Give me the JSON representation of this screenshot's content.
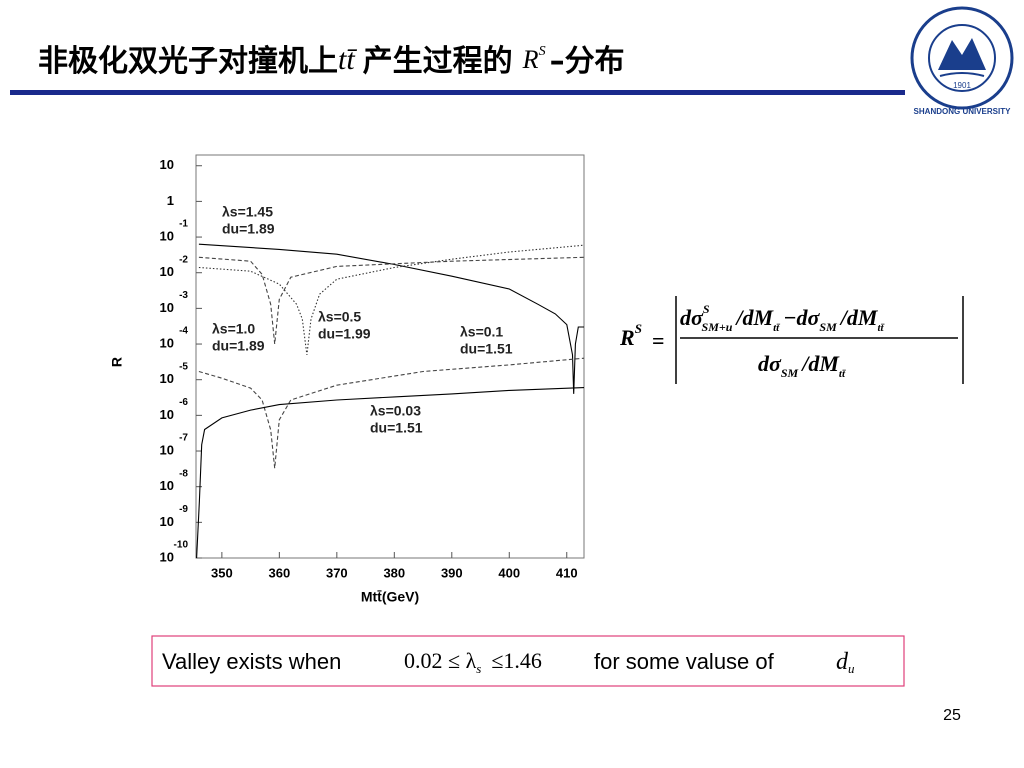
{
  "slide": {
    "title": "非极化双光子对撞机上",
    "title_tt": "tt̄",
    "title_mid": "产生过程的",
    "title_r": "R",
    "title_r_sup": "S",
    "title_end": "–分布",
    "formula": {
      "lhs": "R",
      "lhs_sup": "S",
      "eq": "=",
      "num1": "dσ",
      "num1_sup": "S",
      "num1_sub": "SM+u",
      "num2": "/dM",
      "num2_sub": "tt̄",
      "minus": "−dσ",
      "num3_sub": "SM",
      "num4": "/dM",
      "num4_sub": "tt̄",
      "den1": "dσ",
      "den1_sub": "SM",
      "den2": "/dM",
      "den2_sub": "tt̄"
    },
    "note": {
      "text1": "Valley exists when",
      "range": "0.02 ≤ λ",
      "range_sub": "s",
      "range_end": "≤1.46",
      "text2": "for some valuse of",
      "du": "d",
      "du_sub": "u"
    },
    "logo": {
      "name": "SHANDONG UNIVERSITY",
      "year": "1901"
    },
    "page_number": "25"
  },
  "chart_data": {
    "type": "line",
    "ylabel": "R",
    "xlabel": "Mtt̄(GeV)",
    "ylog": true,
    "xlim": [
      345.5,
      413
    ],
    "xticks": [
      350,
      360,
      370,
      380,
      390,
      400,
      410
    ],
    "ylim": [
      1e-10,
      20
    ],
    "yticks": [
      {
        "value": 10,
        "label": "10"
      },
      {
        "value": 1,
        "label": "1"
      },
      {
        "value": 0.1,
        "label": "10",
        "exponent": "-1"
      },
      {
        "value": 0.01,
        "label": "10",
        "exponent": "-2"
      },
      {
        "value": 0.001,
        "label": "10",
        "exponent": "-3"
      },
      {
        "value": 0.0001,
        "label": "10",
        "exponent": "-4"
      },
      {
        "value": 1e-05,
        "label": "10",
        "exponent": "-5"
      },
      {
        "value": 1e-06,
        "label": "10",
        "exponent": "-6"
      },
      {
        "value": 1e-07,
        "label": "10",
        "exponent": "-7"
      },
      {
        "value": 1e-08,
        "label": "10",
        "exponent": "-8"
      },
      {
        "value": 1e-09,
        "label": "10",
        "exponent": "-9"
      },
      {
        "value": 1e-10,
        "label": "10",
        "exponent": "-10"
      }
    ],
    "series": [
      {
        "name": "λs=1.45",
        "du": "du=1.89",
        "color": "#000000",
        "dash": "solid",
        "x": [
          346,
          360,
          370,
          380,
          390,
          400,
          405,
          408,
          410,
          411,
          411.2,
          411.5,
          412,
          413
        ],
        "values": [
          0.063,
          0.045,
          0.033,
          0.017,
          0.008,
          0.0035,
          0.0013,
          0.0007,
          0.00035,
          5e-05,
          4e-06,
          0.0001,
          0.0003,
          0.0003
        ]
      },
      {
        "name": "λs=0.5",
        "du": "du=1.99",
        "color": "#333333",
        "dash": "dotted",
        "x": [
          346,
          355,
          360,
          363,
          364,
          364.8,
          365.5,
          367,
          370,
          380,
          390,
          400,
          413
        ],
        "values": [
          0.014,
          0.011,
          0.0048,
          0.0013,
          0.0005,
          5e-05,
          0.0005,
          0.0025,
          0.0066,
          0.014,
          0.024,
          0.038,
          0.059
        ]
      },
      {
        "name": "λs=1.0",
        "du": "du=1.89",
        "color": "#444444",
        "dash": "dashed",
        "x": [
          346,
          355,
          357,
          358.5,
          359.2,
          360,
          362,
          370,
          390,
          413
        ],
        "values": [
          0.027,
          0.021,
          0.009,
          0.0013,
          0.0001,
          0.0018,
          0.0075,
          0.015,
          0.021,
          0.027
        ]
      },
      {
        "name": "λs=0.1",
        "du": "du=1.51",
        "color": "#444444",
        "dash": "dashed",
        "x": [
          346,
          350,
          355,
          357,
          358.5,
          359.2,
          360,
          362,
          370,
          385,
          400,
          413
        ],
        "values": [
          1.7e-05,
          1.1e-05,
          5.8e-06,
          2.7e-06,
          3.9e-07,
          3.3e-08,
          7.5e-07,
          2.7e-06,
          7e-06,
          1.7e-05,
          2.6e-05,
          4e-05
        ]
      },
      {
        "name": "λs=0.03",
        "du": "du=1.51",
        "color": "#000000",
        "dash": "solid",
        "x": [
          345.6,
          346.1,
          346.5,
          347,
          350,
          355,
          360,
          370,
          380,
          390,
          400,
          413
        ],
        "values": [
          1e-10,
          4e-09,
          1.5e-07,
          4e-07,
          8.5e-07,
          1.4e-06,
          2e-06,
          2.7e-06,
          3.3e-06,
          4e-06,
          5e-06,
          6e-06
        ]
      }
    ]
  }
}
